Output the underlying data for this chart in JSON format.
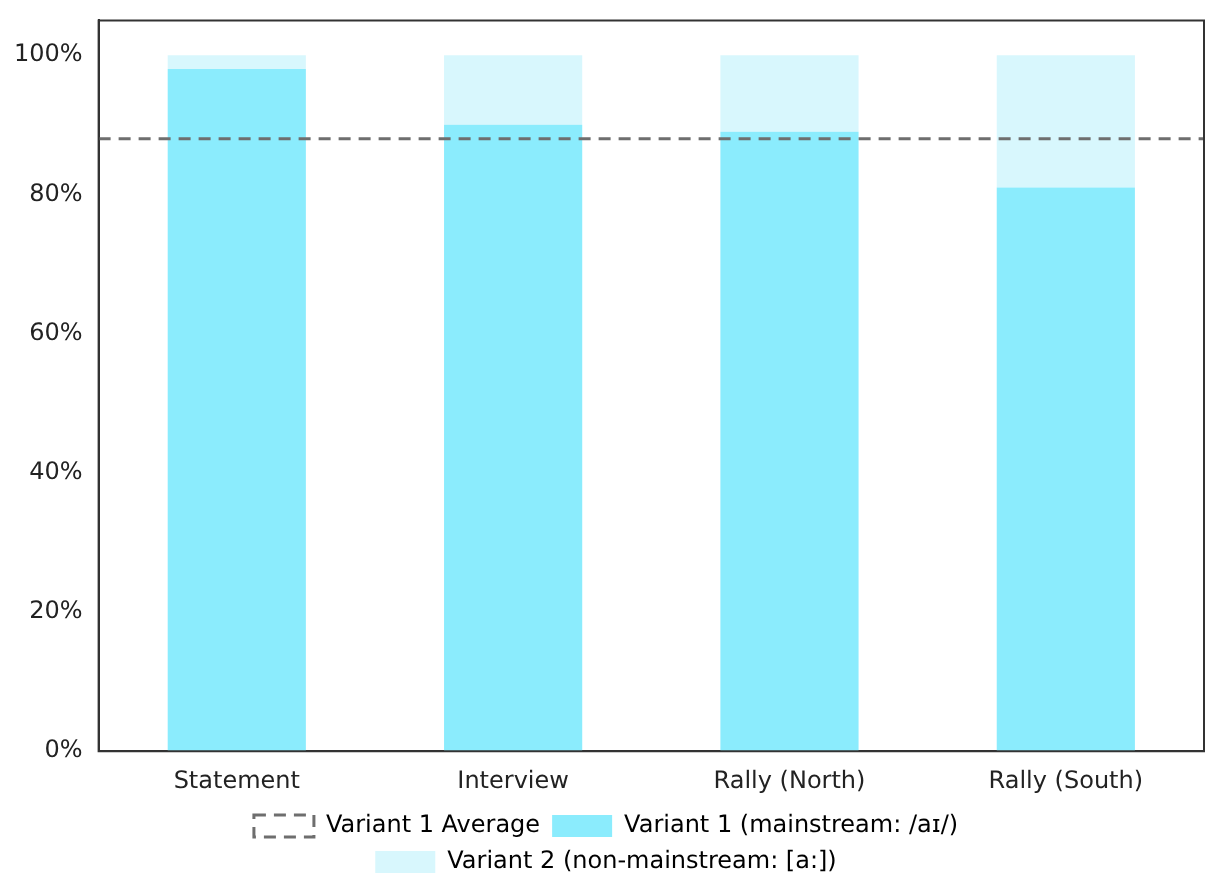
{
  "chart_data": {
    "type": "bar",
    "stacked": true,
    "categories": [
      "Statement",
      "Interview",
      "Rally (North)",
      "Rally (South)"
    ],
    "series": [
      {
        "name": "Variant 1 (mainstream: /aɪ/)",
        "color": "#8becfd",
        "values": [
          98,
          90,
          89,
          81
        ]
      },
      {
        "name": "Variant 2 (non-mainstream: [a:])",
        "color": "#d8f7fd",
        "values": [
          2,
          10,
          11,
          19
        ]
      }
    ],
    "ylim": [
      0,
      105
    ],
    "yticks": [
      {
        "value": 0,
        "label": "0%"
      },
      {
        "value": 20,
        "label": "20%"
      },
      {
        "value": 40,
        "label": "40%"
      },
      {
        "value": 60,
        "label": "60%"
      },
      {
        "value": 80,
        "label": "80%"
      },
      {
        "value": 100,
        "label": "100%"
      }
    ],
    "ref_lines": [
      {
        "axis": "y",
        "value": 88,
        "label": "Variant 1 Average",
        "color": "#6e6e6e",
        "line_style": "dashed"
      }
    ],
    "grid": false,
    "legend": "bottom"
  }
}
